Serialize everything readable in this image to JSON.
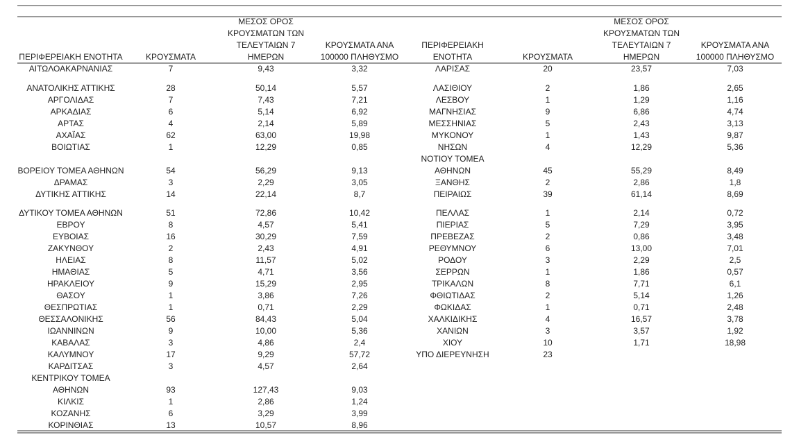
{
  "table": {
    "header": [
      [
        "ΠΕΡΙΦΕΡΕΙΑΚΗ ΕΝΟΤΗΤΑ"
      ],
      [
        "ΚΡΟΥΣΜΑΤΑ"
      ],
      [
        "ΜΕΣΟΣ ΟΡΟΣ",
        "ΚΡΟΥΣΜΑΤΩΝ ΤΩΝ",
        "ΤΕΛΕΥΤΑΙΩΝ 7",
        "ΗΜΕΡΩΝ"
      ],
      [
        "ΚΡΟΥΣΜΑΤΑ ΑΝΑ",
        "100000 ΠΛΗΘΥΣΜΟ"
      ],
      [
        "ΠΕΡΙΦΕΡΕΙΑΚΗ",
        "ΕΝΟΤΗΤΑ"
      ],
      [
        "ΚΡΟΥΣΜΑΤΑ"
      ],
      [
        "ΜΕΣΟΣ ΟΡΟΣ",
        "ΚΡΟΥΣΜΑΤΩΝ ΤΩΝ",
        "ΤΕΛΕΥΤΑΙΩΝ 7",
        "ΗΜΕΡΩΝ"
      ],
      [
        "ΚΡΟΥΣΜΑΤΑ ΑΝΑ",
        "100000 ΠΛΗΘΥΣΜΟ"
      ]
    ],
    "rows": [
      [
        "ΑΙΤΩΛΟΑΚΑΡΝΑΝΙΑΣ",
        7,
        "9,43",
        "3,32",
        "ΛΑΡΙΣΑΣ",
        20,
        "23,57",
        "7,03"
      ],
      [
        "ΑΝΑΤΟΛΙΚΗΣ ΑΤΤΙΚΗΣ",
        28,
        "50,14",
        "5,57",
        "ΛΑΣΙΘΙΟΥ",
        2,
        "1,86",
        "2,65"
      ],
      [
        "ΑΡΓΟΛΙΔΑΣ",
        7,
        "7,43",
        "7,21",
        "ΛΕΣΒΟΥ",
        1,
        "1,29",
        "1,16"
      ],
      [
        "ΑΡΚΑΔΙΑΣ",
        6,
        "5,14",
        "6,92",
        "ΜΑΓΝΗΣΙΑΣ",
        9,
        "6,86",
        "4,74"
      ],
      [
        "ΑΡΤΑΣ",
        4,
        "2,14",
        "5,89",
        "ΜΕΣΣΗΝΙΑΣ",
        5,
        "2,43",
        "3,13"
      ],
      [
        "ΑΧΑΪΑΣ",
        62,
        "63,00",
        "19,98",
        "ΜΥΚΟΝΟΥ",
        1,
        "1,43",
        "9,87"
      ],
      [
        "ΒΟΙΩΤΙΑΣ",
        1,
        "12,29",
        "0,85",
        "ΝΗΣΩΝ",
        4,
        "12,29",
        "5,36"
      ],
      [
        null,
        null,
        null,
        null,
        "ΝΟΤΙΟΥ ΤΟΜΕΑ",
        null,
        null,
        null
      ],
      [
        "ΒΟΡΕΙΟΥ ΤΟΜΕΑ ΑΘΗΝΩΝ",
        54,
        "56,29",
        "9,13",
        "ΑΘΗΝΩΝ",
        45,
        "55,29",
        "8,49"
      ],
      [
        "ΔΡΑΜΑΣ",
        3,
        "2,29",
        "3,05",
        "ΞΑΝΘΗΣ",
        2,
        "2,86",
        "1,8"
      ],
      [
        "ΔΥΤΙΚΗΣ ΑΤΤΙΚΗΣ",
        14,
        "22,14",
        "8,7",
        "ΠΕΙΡΑΙΩΣ",
        39,
        "61,14",
        "8,69"
      ],
      [
        "ΔΥΤΙΚΟΥ ΤΟΜΕΑ ΑΘΗΝΩΝ",
        51,
        "72,86",
        "10,42",
        "ΠΕΛΛΑΣ",
        1,
        "2,14",
        "0,72"
      ],
      [
        "ΕΒΡΟΥ",
        8,
        "4,57",
        "5,41",
        "ΠΙΕΡΙΑΣ",
        5,
        "7,29",
        "3,95"
      ],
      [
        "ΕΥΒΟΙΑΣ",
        16,
        "30,29",
        "7,59",
        "ΠΡΕΒΕΖΑΣ",
        2,
        "0,86",
        "3,48"
      ],
      [
        "ΖΑΚΥΝΘΟΥ",
        2,
        "2,43",
        "4,91",
        "ΡΕΘΥΜΝΟΥ",
        6,
        "13,00",
        "7,01"
      ],
      [
        "ΗΛΕΙΑΣ",
        8,
        "11,57",
        "5,02",
        "ΡΟΔΟΥ",
        3,
        "2,29",
        "2,5"
      ],
      [
        "ΗΜΑΘΙΑΣ",
        5,
        "4,71",
        "3,56",
        "ΣΕΡΡΩΝ",
        1,
        "1,86",
        "0,57"
      ],
      [
        "ΗΡΑΚΛΕΙΟΥ",
        9,
        "15,29",
        "2,95",
        "ΤΡΙΚΑΛΩΝ",
        8,
        "7,71",
        "6,1"
      ],
      [
        "ΘΑΣΟΥ",
        1,
        "3,86",
        "7,26",
        "ΦΘΙΩΤΙΔΑΣ",
        2,
        "5,14",
        "1,26"
      ],
      [
        "ΘΕΣΠΡΩΤΙΑΣ",
        1,
        "0,71",
        "2,29",
        "ΦΩΚΙΔΑΣ",
        1,
        "0,71",
        "2,48"
      ],
      [
        "ΘΕΣΣΑΛΟΝΙΚΗΣ",
        56,
        "84,43",
        "5,04",
        "ΧΑΛΚΙΔΙΚΗΣ",
        4,
        "16,57",
        "3,78"
      ],
      [
        "ΙΩΑΝΝΙΝΩΝ",
        9,
        "10,00",
        "5,36",
        "ΧΑΝΙΩΝ",
        3,
        "3,57",
        "1,92"
      ],
      [
        "ΚΑΒΑΛΑΣ",
        3,
        "4,86",
        "2,4",
        "ΧΙΟΥ",
        10,
        "1,71",
        "18,98"
      ],
      [
        "ΚΑΛΥΜΝΟΥ",
        17,
        "9,29",
        "57,72",
        "ΥΠΟ ΔΙΕΡΕΥΝΗΣΗ",
        23,
        null,
        null
      ],
      [
        "ΚΑΡΔΙΤΣΑΣ",
        3,
        "4,57",
        "2,64",
        null,
        null,
        null,
        null
      ],
      [
        "ΚΕΝΤΡΙΚΟΥ ΤΟΜΕΑ",
        null,
        null,
        null,
        null,
        null,
        null,
        null
      ],
      [
        "ΑΘΗΝΩΝ",
        93,
        "127,43",
        "9,03",
        null,
        null,
        null,
        null
      ],
      [
        "ΚΙΛΚΙΣ",
        1,
        "2,86",
        "1,24",
        null,
        null,
        null,
        null
      ],
      [
        "ΚΟΖΑΝΗΣ",
        6,
        "3,29",
        "3,99",
        null,
        null,
        null,
        null
      ],
      [
        "ΚΟΡΙΝΘΙΑΣ",
        13,
        "10,57",
        "8,96",
        null,
        null,
        null,
        null
      ]
    ]
  }
}
